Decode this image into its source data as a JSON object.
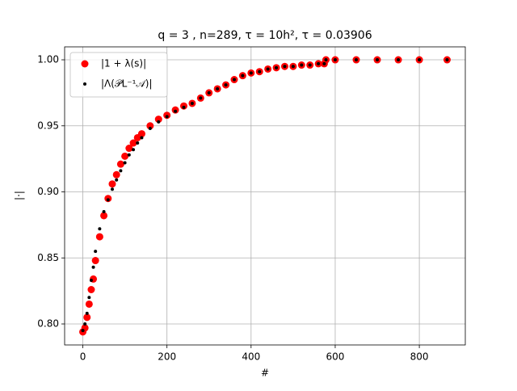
{
  "chart_data": {
    "type": "scatter",
    "title": "q = 3 , n=289, τ = 10h², τ = 0.03906",
    "xlabel": "#",
    "ylabel": "|·|",
    "x": [
      0,
      5,
      10,
      15,
      20,
      25,
      30,
      40,
      50,
      60,
      70,
      80,
      90,
      100,
      110,
      120,
      130,
      140,
      160,
      180,
      200,
      220,
      240,
      260,
      280,
      300,
      320,
      340,
      360,
      380,
      400,
      420,
      440,
      460,
      480,
      500,
      520,
      540,
      560,
      574,
      578,
      600,
      650,
      700,
      750,
      800,
      866
    ],
    "series": [
      {
        "name": "|1 + λ(s)|",
        "color": "#ff0000",
        "marker_size": 4.5,
        "values": [
          0.794,
          0.797,
          0.805,
          0.815,
          0.826,
          0.834,
          0.848,
          0.866,
          0.882,
          0.895,
          0.906,
          0.913,
          0.921,
          0.927,
          0.933,
          0.937,
          0.941,
          0.944,
          0.95,
          0.955,
          0.958,
          0.962,
          0.965,
          0.967,
          0.971,
          0.975,
          0.978,
          0.981,
          0.985,
          0.988,
          0.99,
          0.991,
          0.993,
          0.994,
          0.995,
          0.995,
          0.996,
          0.996,
          0.997,
          0.997,
          1.0,
          1.0,
          1.0,
          1.0,
          1.0,
          1.0,
          1.0
        ]
      },
      {
        "name": "|Λ(𝒫L⁻¹𝒜)|",
        "color": "#000000",
        "marker_size": 2,
        "values": [
          0.795,
          0.8,
          0.808,
          0.82,
          0.833,
          0.843,
          0.855,
          0.872,
          0.885,
          0.894,
          0.902,
          0.909,
          0.916,
          0.922,
          0.928,
          0.932,
          0.937,
          0.941,
          0.948,
          0.953,
          0.957,
          0.961,
          0.964,
          0.967,
          0.971,
          0.975,
          0.978,
          0.981,
          0.985,
          0.988,
          0.99,
          0.991,
          0.993,
          0.994,
          0.995,
          0.995,
          0.996,
          0.996,
          0.997,
          0.997,
          1.0,
          1.0,
          1.0,
          1.0,
          1.0,
          1.0,
          1.0
        ]
      }
    ],
    "xlim": [
      -43.3,
      909.3
    ],
    "xticks": [
      0,
      200,
      400,
      600,
      800
    ],
    "ylim": [
      0.7841,
      1.0098
    ],
    "yticks": [
      {
        "value": 0.8,
        "label": "0.80"
      },
      {
        "value": 0.85,
        "label": "0.85"
      },
      {
        "value": 0.9,
        "label": "0.90"
      },
      {
        "value": 0.95,
        "label": "0.95"
      },
      {
        "value": 1.0,
        "label": "1.00"
      }
    ],
    "grid": true,
    "legend": "upper-left"
  }
}
